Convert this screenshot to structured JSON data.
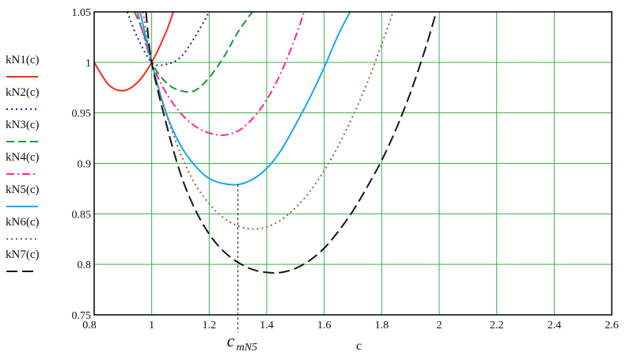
{
  "chart_data": {
    "type": "line",
    "xlabel": "c",
    "xlim": [
      0.8,
      2.6
    ],
    "ylim": [
      0.75,
      1.05
    ],
    "grid": true,
    "xticks": [
      "0.8",
      "1",
      "1.2",
      "1.4",
      "1.6",
      "1.8",
      "2",
      "2.2",
      "2.4",
      "2.6"
    ],
    "yticks": [
      "0.75",
      "0.8",
      "0.85",
      "0.9",
      "0.95",
      "1",
      "1.05"
    ],
    "legend_position": "left",
    "series": [
      {
        "name": "kN1(c)",
        "color": "#ff2a1a",
        "dash": "solid",
        "x": [
          0.8,
          0.85,
          0.9,
          0.95,
          1.0,
          1.05,
          1.075
        ],
        "y": [
          1.0,
          0.978,
          0.972,
          0.98,
          1.0,
          1.03,
          1.05
        ]
      },
      {
        "name": "kN2(c)",
        "color": "#1c1caa",
        "dash": "dot",
        "x": [
          0.915,
          0.95,
          1.0,
          1.05,
          1.1,
          1.15,
          1.2
        ],
        "y": [
          1.05,
          1.025,
          1.0,
          0.998,
          1.005,
          1.025,
          1.05
        ]
      },
      {
        "name": "kN3(c)",
        "color": "#1a9a3c",
        "dash": "dash",
        "x": [
          0.94,
          0.97,
          1.0,
          1.05,
          1.1,
          1.15,
          1.2,
          1.25,
          1.3,
          1.35
        ],
        "y": [
          1.05,
          1.03,
          1.0,
          0.98,
          0.972,
          0.972,
          0.985,
          1.005,
          1.03,
          1.05
        ]
      },
      {
        "name": "kN4(c)",
        "color": "#ff22aa",
        "dash": "dashdot",
        "x": [
          0.95,
          1.0,
          1.05,
          1.1,
          1.15,
          1.2,
          1.25,
          1.3,
          1.35,
          1.4,
          1.45,
          1.5,
          1.53
        ],
        "y": [
          1.05,
          1.0,
          0.97,
          0.95,
          0.937,
          0.93,
          0.928,
          0.932,
          0.944,
          0.963,
          0.99,
          1.025,
          1.05
        ]
      },
      {
        "name": "kN5(c)",
        "color": "#12aaee",
        "dash": "solid",
        "x": [
          0.96,
          1.0,
          1.05,
          1.1,
          1.15,
          1.2,
          1.25,
          1.3,
          1.35,
          1.4,
          1.45,
          1.5,
          1.55,
          1.6,
          1.65,
          1.69
        ],
        "y": [
          1.05,
          1.0,
          0.95,
          0.918,
          0.898,
          0.885,
          0.88,
          0.879,
          0.884,
          0.895,
          0.913,
          0.938,
          0.965,
          0.995,
          1.028,
          1.05
        ]
      },
      {
        "name": "kN6(c)",
        "color": "#9a6040",
        "dash": "dot",
        "x": [
          0.97,
          1.0,
          1.05,
          1.1,
          1.15,
          1.2,
          1.25,
          1.3,
          1.35,
          1.4,
          1.45,
          1.5,
          1.55,
          1.6,
          1.65,
          1.7,
          1.75,
          1.8,
          1.84
        ],
        "y": [
          1.05,
          1.0,
          0.95,
          0.91,
          0.88,
          0.86,
          0.846,
          0.838,
          0.835,
          0.837,
          0.844,
          0.856,
          0.872,
          0.893,
          0.918,
          0.947,
          0.98,
          1.018,
          1.05
        ]
      },
      {
        "name": "kN7(c)",
        "color": "#151515",
        "dash": "longdash",
        "x": [
          0.98,
          1.0,
          1.05,
          1.1,
          1.15,
          1.2,
          1.25,
          1.3,
          1.35,
          1.4,
          1.45,
          1.5,
          1.55,
          1.6,
          1.65,
          1.7,
          1.75,
          1.8,
          1.85,
          1.9,
          1.95,
          1.99
        ],
        "y": [
          1.05,
          1.0,
          0.94,
          0.89,
          0.855,
          0.83,
          0.813,
          0.802,
          0.795,
          0.792,
          0.792,
          0.796,
          0.804,
          0.816,
          0.833,
          0.853,
          0.877,
          0.903,
          0.934,
          0.97,
          1.012,
          1.05
        ]
      }
    ],
    "annotation": {
      "text_main": "c",
      "text_sub": "mN5",
      "x": 1.3,
      "y": 0.879
    }
  }
}
